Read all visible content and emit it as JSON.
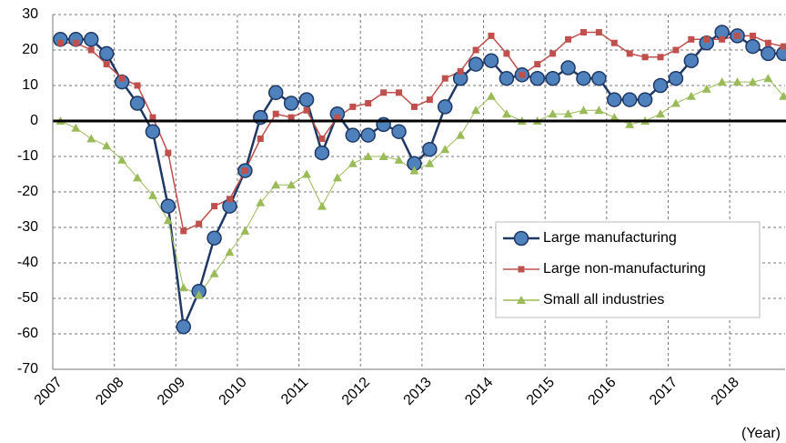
{
  "chart_data": {
    "type": "line",
    "x_label": "(Year)",
    "x": [
      2007.125,
      2007.375,
      2007.625,
      2007.875,
      2008.125,
      2008.375,
      2008.625,
      2008.875,
      2009.125,
      2009.375,
      2009.625,
      2009.875,
      2010.125,
      2010.375,
      2010.625,
      2010.875,
      2011.125,
      2011.375,
      2011.625,
      2011.875,
      2012.125,
      2012.375,
      2012.625,
      2012.875,
      2013.125,
      2013.375,
      2013.625,
      2013.875,
      2014.125,
      2014.375,
      2014.625,
      2014.875,
      2015.125,
      2015.375,
      2015.625,
      2015.875,
      2016.125,
      2016.375,
      2016.625,
      2016.875,
      2017.125,
      2017.375,
      2017.625,
      2017.875,
      2018.125,
      2018.375,
      2018.625,
      2018.875
    ],
    "series": [
      {
        "name": "Large manufacturing",
        "color": "#1f3864",
        "marker": "circle",
        "marker_fill": "#4f81bd",
        "values": [
          23,
          23,
          23,
          19,
          11,
          5,
          -3,
          -24,
          -58,
          -48,
          -33,
          -24,
          -14,
          1,
          8,
          5,
          6,
          -9,
          2,
          -4,
          -4,
          -1,
          -3,
          -12,
          -8,
          4,
          12,
          16,
          17,
          12,
          13,
          12,
          12,
          15,
          12,
          12,
          6,
          6,
          6,
          10,
          12,
          17,
          22,
          25,
          24,
          21,
          19,
          19
        ]
      },
      {
        "name": "Large non-manufacturing",
        "color": "#c0504d",
        "marker": "square",
        "marker_fill": "#c0504d",
        "values": [
          22,
          22,
          20,
          16,
          12,
          10,
          1,
          -9,
          -31,
          -29,
          -24,
          -22,
          -14,
          -5,
          2,
          1,
          3,
          -5,
          1,
          4,
          5,
          8,
          8,
          4,
          6,
          12,
          14,
          20,
          24,
          19,
          13,
          16,
          19,
          23,
          25,
          25,
          22,
          19,
          18,
          18,
          20,
          23,
          23,
          23,
          24,
          24,
          22,
          21
        ]
      },
      {
        "name": "Small all industries",
        "color": "#9bbb59",
        "marker": "triangle",
        "marker_fill": "#9bbb59",
        "values": [
          0,
          -2,
          -5,
          -7,
          -11,
          -16,
          -21,
          -28,
          -47,
          -49,
          -43,
          -37,
          -31,
          -23,
          -18,
          -18,
          -15,
          -24,
          -16,
          -12,
          -10,
          -10,
          -11,
          -14,
          -12,
          -8,
          -4,
          3,
          7,
          2,
          0,
          0,
          2,
          2,
          3,
          3,
          1,
          -1,
          0,
          2,
          5,
          7,
          9,
          11,
          11,
          11,
          12,
          7
        ]
      }
    ],
    "xlim": [
      2007,
      2018.9
    ],
    "xticks": [
      2007,
      2008,
      2009,
      2010,
      2011,
      2012,
      2013,
      2014,
      2015,
      2016,
      2017,
      2018
    ],
    "ylim": [
      -70,
      30
    ],
    "yticks": [
      -70,
      -60,
      -50,
      -40,
      -30,
      -20,
      -10,
      0,
      10,
      20,
      30
    ],
    "grid": true,
    "legend": "lower right"
  }
}
